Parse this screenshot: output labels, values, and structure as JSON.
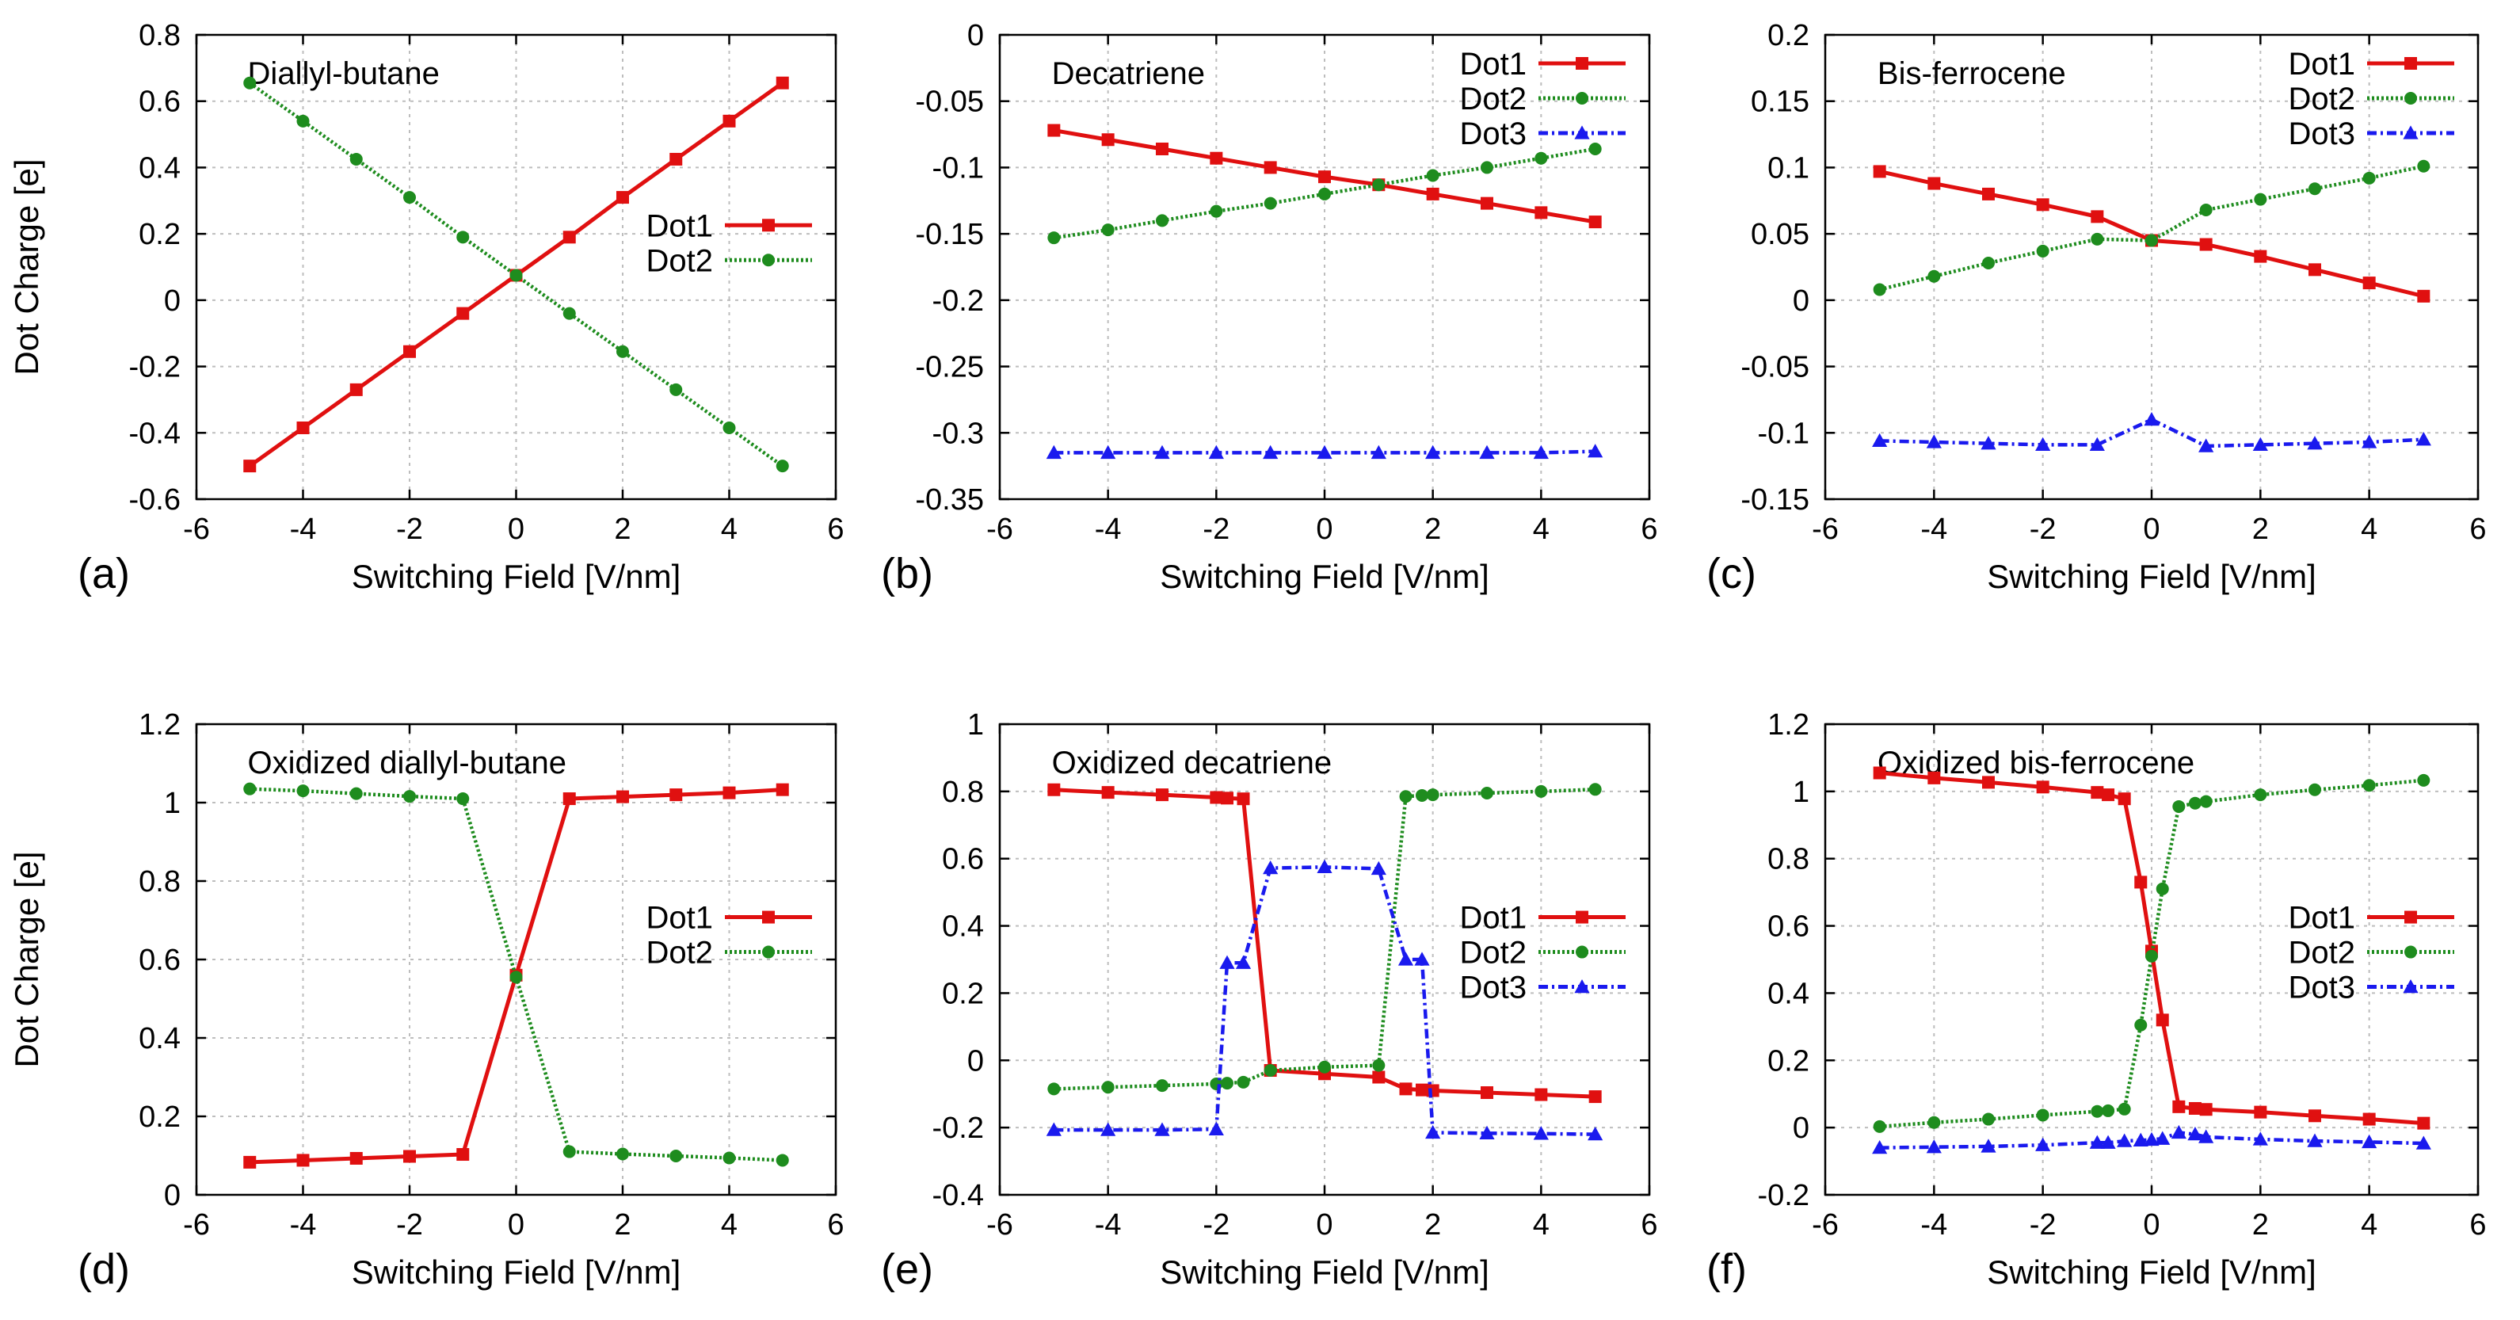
{
  "figure_xlabel": "Switching Field [V/nm]",
  "figure_ylabel": "Dot Charge [e]",
  "colors": {
    "Dot1": "#e01010",
    "Dot2": "#1e8c1e",
    "Dot3": "#1a1aee"
  },
  "chart_data": [
    {
      "type": "line",
      "panel_label": "(a)",
      "title": "Diallyl-butane",
      "xlabel": "Switching Field [V/nm]",
      "ylabel": "Dot Charge [e]",
      "xlim": [
        -6,
        6
      ],
      "ylim": [
        -0.6,
        0.8
      ],
      "xticks": [
        -6,
        -4,
        -2,
        0,
        2,
        4,
        6
      ],
      "yticks": [
        -0.6,
        -0.4,
        -0.2,
        0,
        0.2,
        0.4,
        0.6,
        0.8
      ],
      "xtick_labels": [
        "-6",
        "-4",
        "-2",
        "0",
        "2",
        "4",
        "6"
      ],
      "ytick_labels": [
        "-0.6",
        "-0.4",
        "-0.2",
        "0",
        "0.2",
        "0.4",
        "0.6",
        "0.8"
      ],
      "grid": true,
      "legend_position": "middle-right",
      "series": [
        {
          "name": "Dot1",
          "marker": "square",
          "dash": "solid",
          "x": [
            -5,
            -4,
            -3,
            -2,
            -1,
            0,
            1,
            2,
            3,
            4,
            5
          ],
          "y": [
            -0.5,
            -0.385,
            -0.27,
            -0.155,
            -0.04,
            0.075,
            0.19,
            0.31,
            0.425,
            0.54,
            0.655
          ]
        },
        {
          "name": "Dot2",
          "marker": "circle",
          "dash": "dotted",
          "x": [
            -5,
            -4,
            -3,
            -2,
            -1,
            0,
            1,
            2,
            3,
            4,
            5
          ],
          "y": [
            0.655,
            0.54,
            0.425,
            0.31,
            0.19,
            0.075,
            -0.04,
            -0.155,
            -0.27,
            -0.385,
            -0.5
          ]
        }
      ]
    },
    {
      "type": "line",
      "panel_label": "(b)",
      "title": "Decatriene",
      "xlabel": "Switching Field [V/nm]",
      "ylabel": "",
      "xlim": [
        -6,
        6
      ],
      "ylim": [
        -0.35,
        0
      ],
      "xticks": [
        -6,
        -4,
        -2,
        0,
        2,
        4,
        6
      ],
      "yticks": [
        -0.35,
        -0.3,
        -0.25,
        -0.2,
        -0.15,
        -0.1,
        -0.05,
        0
      ],
      "xtick_labels": [
        "-6",
        "-4",
        "-2",
        "0",
        "2",
        "4",
        "6"
      ],
      "ytick_labels": [
        "-0.35",
        "-0.3",
        "-0.25",
        "-0.2",
        "-0.15",
        "-0.1",
        "-0.05",
        "0"
      ],
      "grid": true,
      "legend_position": "top-right",
      "series": [
        {
          "name": "Dot1",
          "marker": "square",
          "dash": "solid",
          "x": [
            -5,
            -4,
            -3,
            -2,
            -1,
            0,
            1,
            2,
            3,
            4,
            5
          ],
          "y": [
            -0.072,
            -0.079,
            -0.086,
            -0.093,
            -0.1,
            -0.107,
            -0.113,
            -0.12,
            -0.127,
            -0.134,
            -0.141
          ]
        },
        {
          "name": "Dot2",
          "marker": "circle",
          "dash": "dotted",
          "x": [
            -5,
            -4,
            -3,
            -2,
            -1,
            0,
            1,
            2,
            3,
            4,
            5
          ],
          "y": [
            -0.153,
            -0.147,
            -0.14,
            -0.133,
            -0.127,
            -0.12,
            -0.113,
            -0.106,
            -0.1,
            -0.093,
            -0.086
          ]
        },
        {
          "name": "Dot3",
          "marker": "triangle",
          "dash": "dashdot",
          "x": [
            -5,
            -4,
            -3,
            -2,
            -1,
            0,
            1,
            2,
            3,
            4,
            5
          ],
          "y": [
            -0.315,
            -0.315,
            -0.315,
            -0.315,
            -0.315,
            -0.315,
            -0.315,
            -0.315,
            -0.315,
            -0.315,
            -0.314
          ]
        }
      ]
    },
    {
      "type": "line",
      "panel_label": "(c)",
      "title": "Bis-ferrocene",
      "xlabel": "Switching Field [V/nm]",
      "ylabel": "",
      "xlim": [
        -6,
        6
      ],
      "ylim": [
        -0.15,
        0.2
      ],
      "xticks": [
        -6,
        -4,
        -2,
        0,
        2,
        4,
        6
      ],
      "yticks": [
        -0.15,
        -0.1,
        -0.05,
        0,
        0.05,
        0.1,
        0.15,
        0.2
      ],
      "xtick_labels": [
        "-6",
        "-4",
        "-2",
        "0",
        "2",
        "4",
        "6"
      ],
      "ytick_labels": [
        "-0.15",
        "-0.1",
        "-0.05",
        "0",
        "0.05",
        "0.1",
        "0.15",
        "0.2"
      ],
      "grid": true,
      "legend_position": "top-right",
      "series": [
        {
          "name": "Dot1",
          "marker": "square",
          "dash": "solid",
          "x": [
            -5,
            -4,
            -3,
            -2,
            -1,
            0,
            1,
            2,
            3,
            4,
            5
          ],
          "y": [
            0.097,
            0.088,
            0.08,
            0.072,
            0.063,
            0.045,
            0.042,
            0.033,
            0.023,
            0.013,
            0.003
          ]
        },
        {
          "name": "Dot2",
          "marker": "circle",
          "dash": "dotted",
          "x": [
            -5,
            -4,
            -3,
            -2,
            -1,
            0,
            1,
            2,
            3,
            4,
            5
          ],
          "y": [
            0.008,
            0.018,
            0.028,
            0.037,
            0.046,
            0.045,
            0.068,
            0.076,
            0.084,
            0.092,
            0.101
          ]
        },
        {
          "name": "Dot3",
          "marker": "triangle",
          "dash": "dashdot",
          "x": [
            -5,
            -4,
            -3,
            -2,
            -1,
            0,
            1,
            2,
            3,
            4,
            5
          ],
          "y": [
            -0.106,
            -0.107,
            -0.108,
            -0.109,
            -0.109,
            -0.09,
            -0.11,
            -0.109,
            -0.108,
            -0.107,
            -0.105
          ]
        }
      ]
    },
    {
      "type": "line",
      "panel_label": "(d)",
      "title": "Oxidized diallyl-butane",
      "xlabel": "Switching Field [V/nm]",
      "ylabel": "Dot Charge [e]",
      "xlim": [
        -6,
        6
      ],
      "ylim": [
        0,
        1.2
      ],
      "xticks": [
        -6,
        -4,
        -2,
        0,
        2,
        4,
        6
      ],
      "yticks": [
        0,
        0.2,
        0.4,
        0.6,
        0.8,
        1,
        1.2
      ],
      "xtick_labels": [
        "-6",
        "-4",
        "-2",
        "0",
        "2",
        "4",
        "6"
      ],
      "ytick_labels": [
        "0",
        "0.2",
        "0.4",
        "0.6",
        "0.8",
        "1",
        "1.2"
      ],
      "grid": true,
      "legend_position": "middle-right",
      "series": [
        {
          "name": "Dot1",
          "marker": "square",
          "dash": "solid",
          "x": [
            -5,
            -4,
            -3,
            -2,
            -1,
            0,
            1,
            2,
            3,
            4,
            5
          ],
          "y": [
            0.083,
            0.088,
            0.093,
            0.098,
            0.103,
            0.56,
            1.01,
            1.015,
            1.02,
            1.025,
            1.033
          ]
        },
        {
          "name": "Dot2",
          "marker": "circle",
          "dash": "dotted",
          "x": [
            -5,
            -4,
            -3,
            -2,
            -1,
            0,
            1,
            2,
            3,
            4,
            5
          ],
          "y": [
            1.035,
            1.03,
            1.023,
            1.016,
            1.01,
            0.555,
            0.11,
            0.104,
            0.099,
            0.094,
            0.088
          ]
        }
      ]
    },
    {
      "type": "line",
      "panel_label": "(e)",
      "title": "Oxidized decatriene",
      "xlabel": "Switching Field [V/nm]",
      "ylabel": "",
      "xlim": [
        -6,
        6
      ],
      "ylim": [
        -0.4,
        1
      ],
      "xticks": [
        -6,
        -4,
        -2,
        0,
        2,
        4,
        6
      ],
      "yticks": [
        -0.4,
        -0.2,
        0,
        0.2,
        0.4,
        0.6,
        0.8,
        1
      ],
      "xtick_labels": [
        "-6",
        "-4",
        "-2",
        "0",
        "2",
        "4",
        "6"
      ],
      "ytick_labels": [
        "-0.4",
        "-0.2",
        "0",
        "0.2",
        "0.4",
        "0.6",
        "0.8",
        "1"
      ],
      "grid": true,
      "legend_position": "middle-right",
      "series": [
        {
          "name": "Dot1",
          "marker": "square",
          "dash": "solid",
          "x": [
            -5,
            -4,
            -3,
            -2,
            -1.8,
            -1.5,
            -1,
            0,
            1,
            1.5,
            1.8,
            2,
            3,
            4,
            5
          ],
          "y": [
            0.805,
            0.797,
            0.79,
            0.782,
            0.78,
            0.778,
            -0.03,
            -0.04,
            -0.05,
            -0.085,
            -0.088,
            -0.09,
            -0.096,
            -0.102,
            -0.108
          ]
        },
        {
          "name": "Dot2",
          "marker": "circle",
          "dash": "dotted",
          "x": [
            -5,
            -4,
            -3,
            -2,
            -1.8,
            -1.5,
            -1,
            0,
            1,
            1.5,
            1.8,
            2,
            3,
            4,
            5
          ],
          "y": [
            -0.085,
            -0.08,
            -0.075,
            -0.07,
            -0.068,
            -0.065,
            -0.03,
            -0.02,
            -0.015,
            0.785,
            0.788,
            0.79,
            0.795,
            0.8,
            0.806
          ]
        },
        {
          "name": "Dot3",
          "marker": "triangle",
          "dash": "dashdot",
          "x": [
            -5,
            -4,
            -3,
            -2,
            -1.8,
            -1.5,
            -1,
            0,
            1,
            1.5,
            1.8,
            2,
            3,
            4,
            5
          ],
          "y": [
            -0.207,
            -0.207,
            -0.207,
            -0.205,
            0.29,
            0.29,
            0.572,
            0.575,
            0.57,
            0.3,
            0.3,
            -0.215,
            -0.217,
            -0.218,
            -0.22
          ]
        }
      ]
    },
    {
      "type": "line",
      "panel_label": "(f)",
      "title": "Oxidized bis-ferrocene",
      "xlabel": "Switching Field [V/nm]",
      "ylabel": "",
      "xlim": [
        -6,
        6
      ],
      "ylim": [
        -0.2,
        1.2
      ],
      "xticks": [
        -6,
        -4,
        -2,
        0,
        2,
        4,
        6
      ],
      "yticks": [
        -0.2,
        0,
        0.2,
        0.4,
        0.6,
        0.8,
        1,
        1.2
      ],
      "xtick_labels": [
        "-6",
        "-4",
        "-2",
        "0",
        "2",
        "4",
        "6"
      ],
      "ytick_labels": [
        "-0.2",
        "0",
        "0.2",
        "0.4",
        "0.6",
        "0.8",
        "1",
        "1.2"
      ],
      "grid": true,
      "legend_position": "middle-right",
      "series": [
        {
          "name": "Dot1",
          "marker": "square",
          "dash": "solid",
          "x": [
            -5,
            -4,
            -3,
            -2,
            -1,
            -0.8,
            -0.5,
            -0.2,
            0,
            0.2,
            0.5,
            0.8,
            1,
            2,
            3,
            4,
            5
          ],
          "y": [
            1.055,
            1.04,
            1.027,
            1.013,
            0.997,
            0.99,
            0.978,
            0.73,
            0.525,
            0.32,
            0.062,
            0.057,
            0.054,
            0.046,
            0.035,
            0.025,
            0.013
          ]
        },
        {
          "name": "Dot2",
          "marker": "circle",
          "dash": "dotted",
          "x": [
            -5,
            -4,
            -3,
            -2,
            -1,
            -0.8,
            -0.5,
            -0.2,
            0,
            0.2,
            0.5,
            0.8,
            1,
            2,
            3,
            4,
            5
          ],
          "y": [
            0.003,
            0.015,
            0.025,
            0.037,
            0.048,
            0.05,
            0.055,
            0.305,
            0.51,
            0.71,
            0.955,
            0.965,
            0.97,
            0.99,
            1.005,
            1.018,
            1.033
          ]
        },
        {
          "name": "Dot3",
          "marker": "triangle",
          "dash": "dashdot",
          "x": [
            -5,
            -4,
            -3,
            -2,
            -1,
            -0.8,
            -0.5,
            -0.2,
            0,
            0.2,
            0.5,
            0.8,
            1,
            2,
            3,
            4,
            5
          ],
          "y": [
            -0.06,
            -0.058,
            -0.056,
            -0.052,
            -0.045,
            -0.045,
            -0.04,
            -0.038,
            -0.036,
            -0.033,
            -0.015,
            -0.02,
            -0.028,
            -0.035,
            -0.04,
            -0.043,
            -0.047
          ]
        }
      ]
    }
  ]
}
